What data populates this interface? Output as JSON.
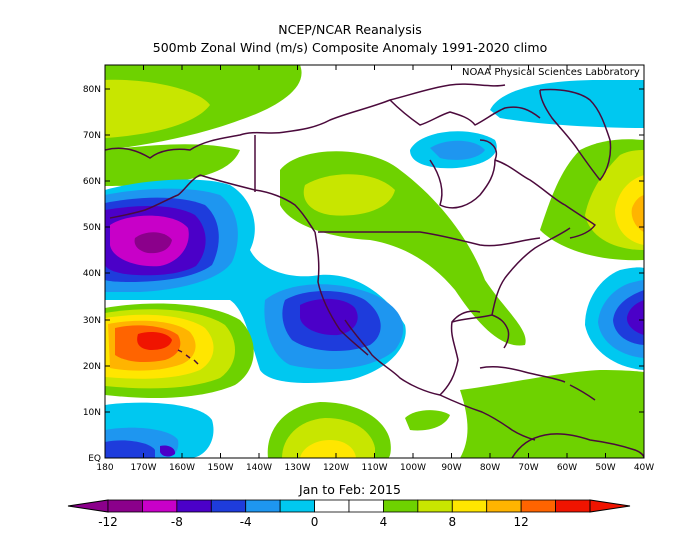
{
  "title_line1": "NCEP/NCAR Reanalysis",
  "title_line2": "500mb Zonal Wind (m/s) Composite Anomaly 1991-2020 climo",
  "credit": "NOAA Physical Sciences Laboratory",
  "time_label": "Jan to Feb: 2015",
  "lat_ticks": [
    "80N",
    "70N",
    "60N",
    "50N",
    "40N",
    "30N",
    "20N",
    "10N",
    "EQ"
  ],
  "lon_ticks": [
    "180",
    "170W",
    "160W",
    "150W",
    "140W",
    "130W",
    "120W",
    "110W",
    "100W",
    "90W",
    "80W",
    "70W",
    "60W",
    "50W",
    "40W"
  ],
  "colorbar": {
    "tick_labels": [
      "-12",
      "-8",
      "-4",
      "0",
      "4",
      "8",
      "12"
    ],
    "colors": [
      "#8b008b",
      "#c800c8",
      "#4b00c8",
      "#1e3cdc",
      "#1e96f0",
      "#00c8f0",
      "#ffffff",
      "#ffffff",
      "#6ed200",
      "#c8e600",
      "#ffe600",
      "#ffb400",
      "#ff6400",
      "#f01400"
    ]
  },
  "colors": {
    "coast": "#4b0a3c",
    "land_bg": "#ffffff"
  }
}
